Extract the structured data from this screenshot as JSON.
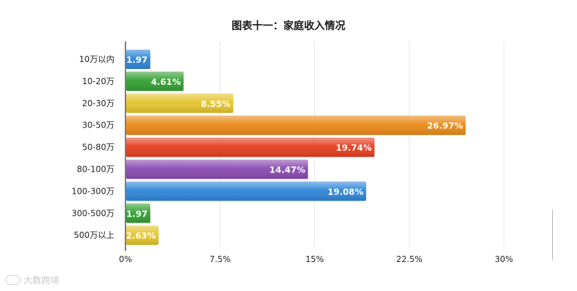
{
  "chart_data": {
    "type": "bar",
    "orientation": "horizontal",
    "title": "图表十一：家庭收入情况",
    "categories": [
      "10万以内",
      "10-20万",
      "20-30万",
      "30-50万",
      "50-80万",
      "80-100万",
      "100-300万",
      "300-500万",
      "500万以上"
    ],
    "values": [
      1.97,
      4.61,
      8.55,
      26.97,
      19.74,
      14.47,
      19.08,
      1.97,
      2.63
    ],
    "value_labels": [
      "1.97",
      "4.61%",
      "8.55%",
      "26.97%",
      "19.74%",
      "14.47%",
      "19.08%",
      "1.97",
      "2.63%"
    ],
    "xlim": [
      0,
      30
    ],
    "x_ticks": [
      0,
      7.5,
      15,
      22.5,
      30
    ],
    "x_tick_labels": [
      "0%",
      "7.5%",
      "15%",
      "22.5%",
      "30%"
    ],
    "xlabel": "",
    "ylabel": "",
    "grid": true,
    "bar_colors": [
      "#2f86d8",
      "#34a033",
      "#e4c42b",
      "#ea8a1a",
      "#e53f1f",
      "#8a4bb0",
      "#2f86d8",
      "#34a033",
      "#e4c42b"
    ]
  },
  "watermark": {
    "text": "大数跨境"
  }
}
